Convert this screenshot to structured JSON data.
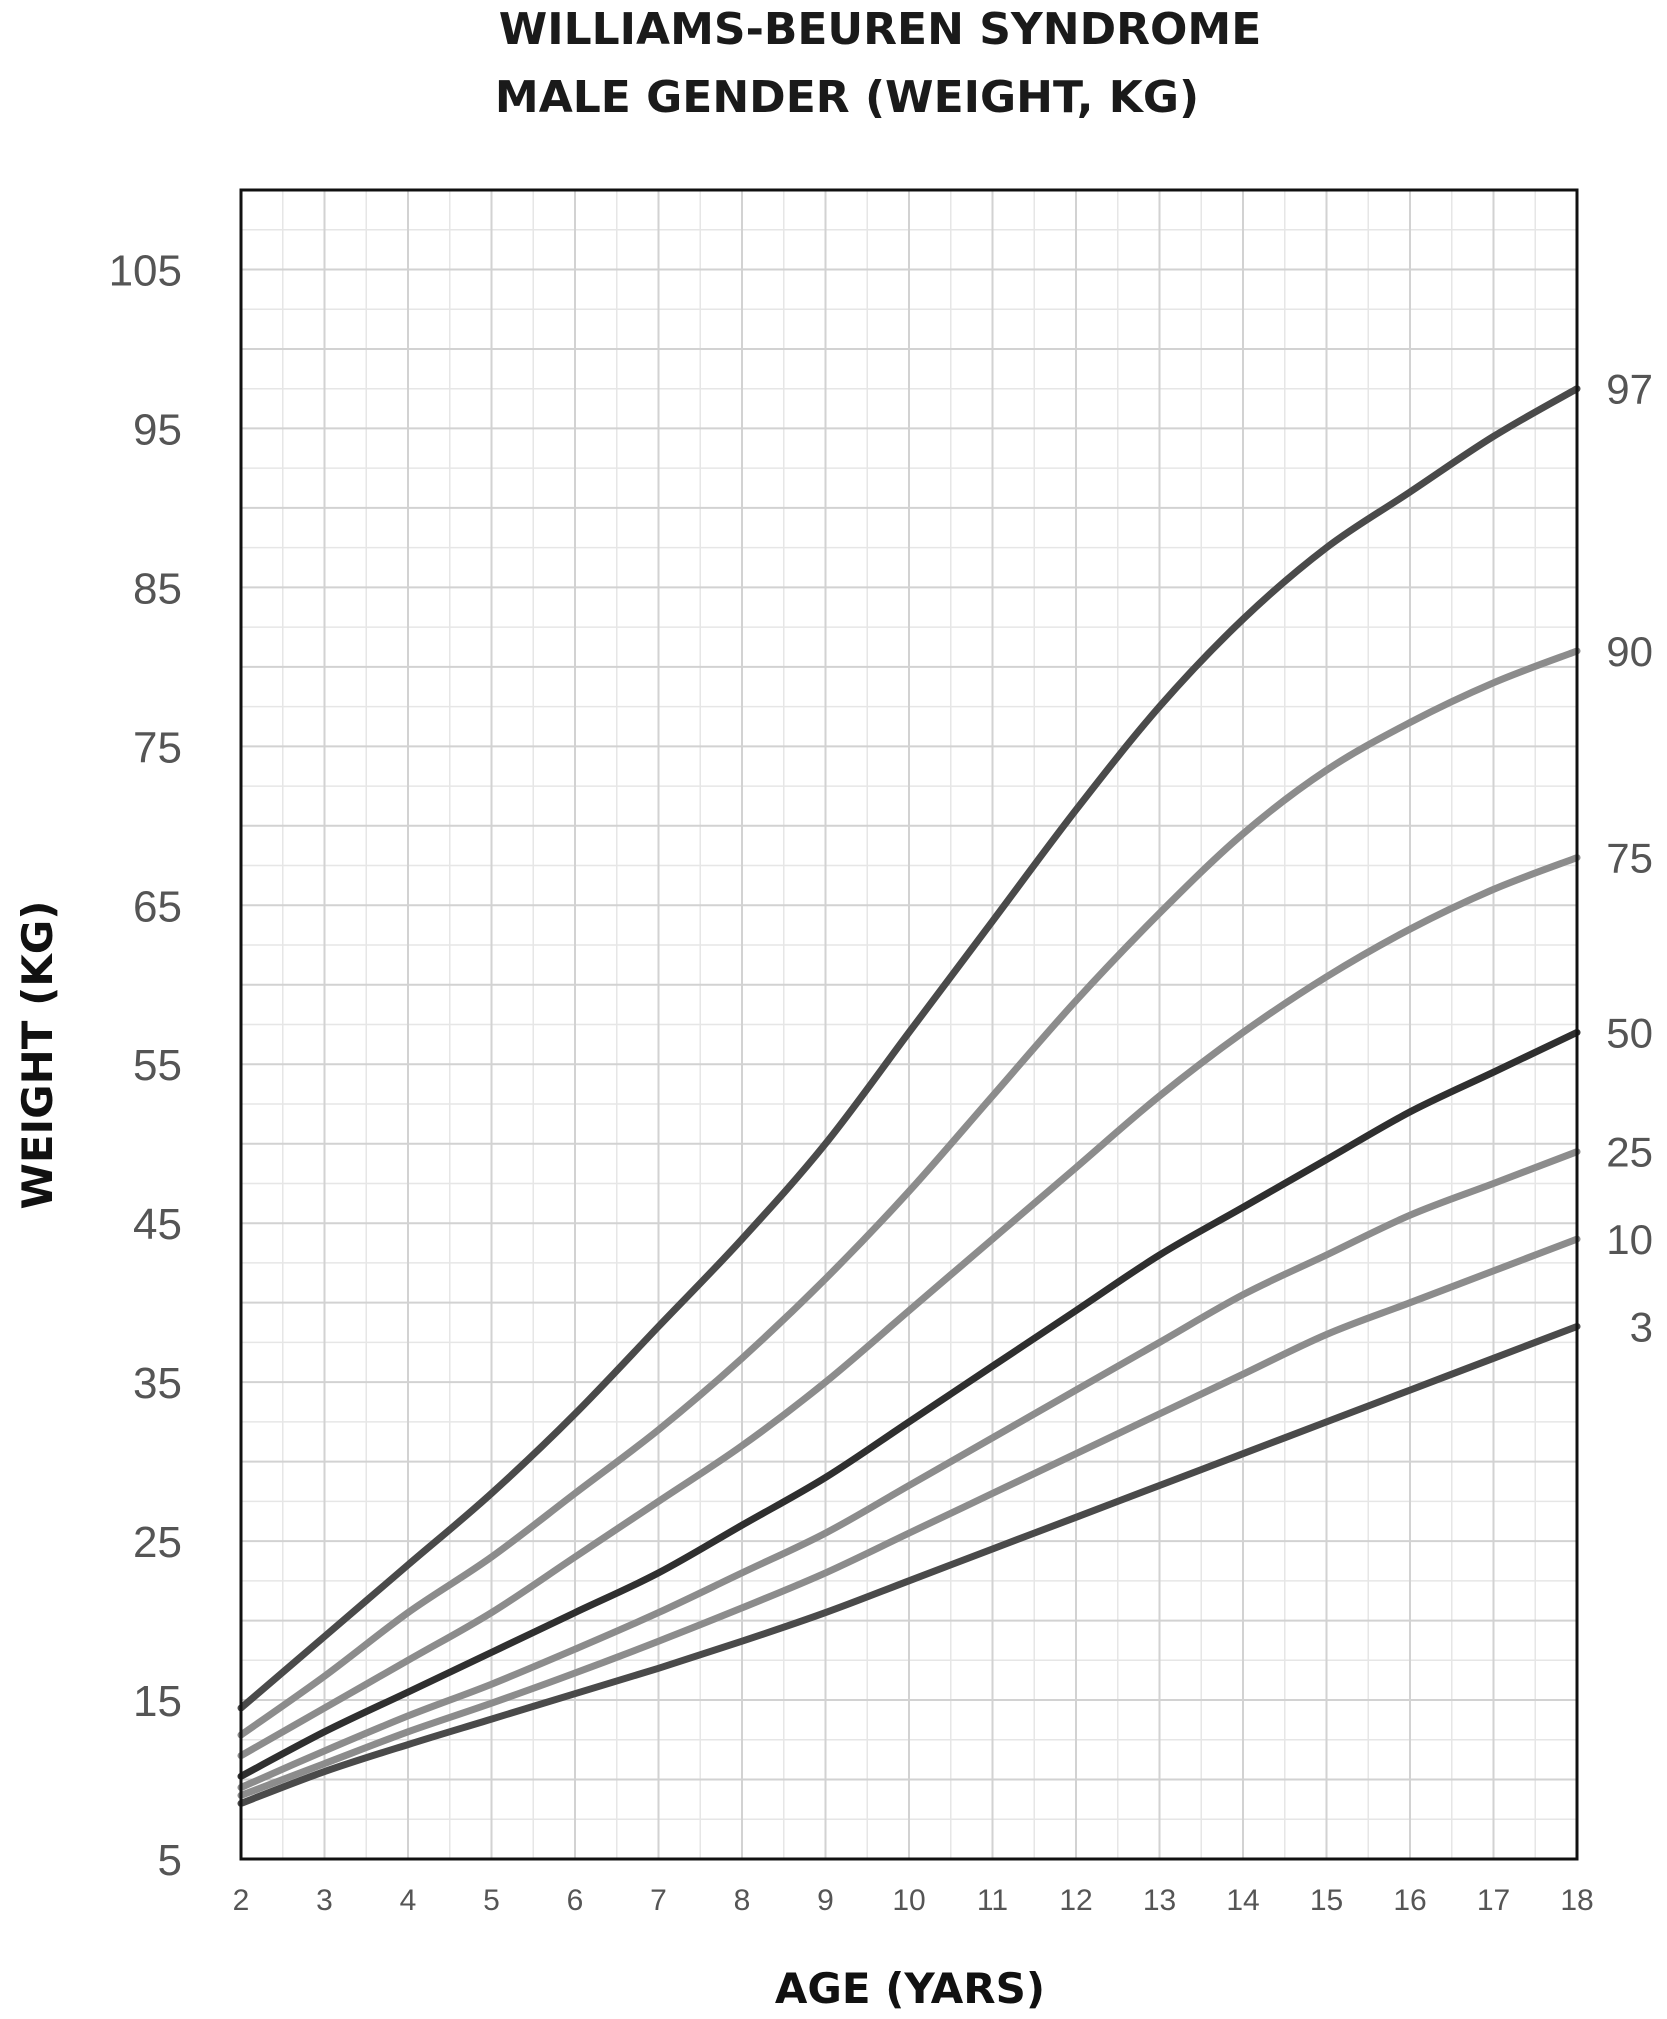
{
  "chart_data": {
    "type": "line",
    "title_lines": [
      "WILLIAMS-BEUREN SYNDROME",
      "MALE GENDER (WEIGHT, KG)"
    ],
    "xlabel": "AGE (YARS)",
    "ylabel": "WEIGHT (KG)",
    "xlim": [
      2,
      18
    ],
    "ylim": [
      5,
      110
    ],
    "xticks": [
      "2",
      "3",
      "4",
      "5",
      "6",
      "7",
      "8",
      "9",
      "10",
      "11",
      "12",
      "13",
      "14",
      "15",
      "16",
      "17",
      "18"
    ],
    "yticks": [
      "5",
      "15",
      "25",
      "35",
      "45",
      "55",
      "65",
      "75",
      "85",
      "95",
      "105"
    ],
    "grid": true,
    "x": [
      2,
      3,
      4,
      5,
      6,
      7,
      8,
      9,
      10,
      11,
      12,
      13,
      14,
      15,
      16,
      17,
      18
    ],
    "series": [
      {
        "name": "97",
        "color": "#4a4a4a",
        "values": [
          14.5,
          19,
          23.5,
          28,
          33,
          38.5,
          44,
          50,
          57,
          64,
          71,
          77.5,
          83,
          87.5,
          91,
          94.5,
          97.5
        ]
      },
      {
        "name": "90",
        "color": "#8c8c8c",
        "values": [
          12.8,
          16.5,
          20.5,
          24,
          28,
          32,
          36.5,
          41.5,
          47,
          53,
          59,
          64.5,
          69.5,
          73.5,
          76.5,
          79,
          81
        ]
      },
      {
        "name": "75",
        "color": "#8c8c8c",
        "values": [
          11.5,
          14.5,
          17.5,
          20.5,
          24,
          27.5,
          31,
          35,
          39.5,
          44,
          48.5,
          53,
          57,
          60.5,
          63.5,
          66,
          68
        ]
      },
      {
        "name": "50",
        "color": "#2f2f2f",
        "values": [
          10.2,
          13,
          15.5,
          18,
          20.5,
          23,
          26,
          29,
          32.5,
          36,
          39.5,
          43,
          46,
          49,
          52,
          54.5,
          57
        ]
      },
      {
        "name": "25",
        "color": "#8c8c8c",
        "values": [
          9.5,
          11.8,
          14,
          16,
          18.2,
          20.5,
          23,
          25.5,
          28.5,
          31.5,
          34.5,
          37.5,
          40.5,
          43,
          45.5,
          47.5,
          49.5
        ]
      },
      {
        "name": "10",
        "color": "#8c8c8c",
        "values": [
          9,
          11,
          13,
          14.8,
          16.7,
          18.7,
          20.8,
          23,
          25.5,
          28,
          30.5,
          33,
          35.5,
          38,
          40,
          42,
          44
        ]
      },
      {
        "name": "3",
        "color": "#4a4a4a",
        "values": [
          8.5,
          10.5,
          12.2,
          13.8,
          15.4,
          17,
          18.7,
          20.5,
          22.5,
          24.5,
          26.5,
          28.5,
          30.5,
          32.5,
          34.5,
          36.5,
          38.5
        ]
      }
    ]
  }
}
